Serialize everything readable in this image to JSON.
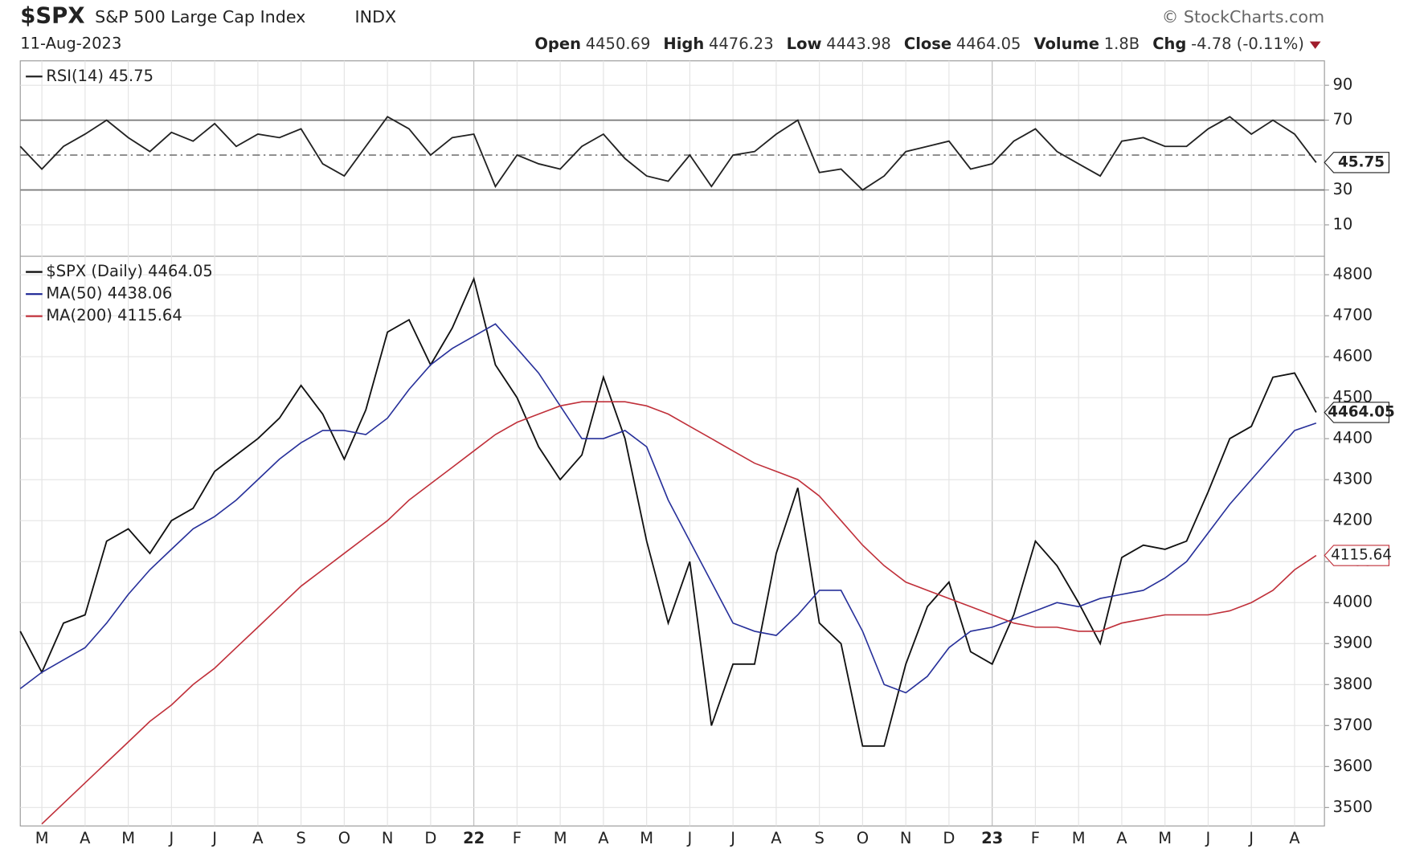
{
  "header": {
    "symbol": "$SPX",
    "name": "S&P 500 Large Cap Index",
    "exchange": "INDX",
    "source": "© StockCharts.com",
    "date": "11-Aug-2023",
    "stats": [
      {
        "label": "Open",
        "value": "4450.69"
      },
      {
        "label": "High",
        "value": "4476.23"
      },
      {
        "label": "Low",
        "value": "4443.98"
      },
      {
        "label": "Close",
        "value": "4464.05"
      },
      {
        "label": "Volume",
        "value": "1.8B"
      },
      {
        "label": "Chg",
        "value": "-4.78 (-0.11%)"
      }
    ]
  },
  "chart_data": [
    {
      "type": "line",
      "ylim": [
        -8,
        104
      ],
      "yticks": [
        10,
        30,
        70,
        90
      ],
      "ref_lines": [
        30,
        50,
        70
      ],
      "grid": true,
      "series": [
        {
          "name": "RSI(14) 45.75",
          "color": "#222222",
          "end_label": "45.75",
          "values": [
            55,
            42,
            55,
            62,
            70,
            60,
            52,
            63,
            58,
            68,
            55,
            62,
            60,
            65,
            45,
            38,
            55,
            72,
            65,
            50,
            60,
            62,
            32,
            50,
            45,
            42,
            55,
            62,
            48,
            38,
            35,
            50,
            32,
            50,
            52,
            62,
            70,
            40,
            42,
            30,
            38,
            52,
            55,
            58,
            42,
            45,
            58,
            65,
            52,
            45,
            38,
            58,
            60,
            55,
            55,
            65,
            72,
            62,
            70,
            62,
            45.75
          ]
        }
      ]
    },
    {
      "type": "line",
      "ylim": [
        3455,
        4845
      ],
      "yticks": [
        3500,
        3600,
        3700,
        3800,
        3900,
        4000,
        4100,
        4200,
        4300,
        4400,
        4500,
        4600,
        4700,
        4800
      ],
      "grid": true,
      "x_labels": [
        "M",
        "A",
        "M",
        "J",
        "J",
        "A",
        "S",
        "O",
        "N",
        "D",
        "22",
        "F",
        "M",
        "A",
        "M",
        "J",
        "J",
        "A",
        "S",
        "O",
        "N",
        "D",
        "23",
        "F",
        "M",
        "A",
        "M",
        "J",
        "J",
        "A"
      ],
      "series": [
        {
          "name": "$SPX (Daily) 4464.05",
          "color": "#111111",
          "end_label": "4464.05",
          "values": [
            3930,
            3830,
            3950,
            3970,
            4150,
            4180,
            4120,
            4200,
            4230,
            4320,
            4360,
            4400,
            4450,
            4530,
            4460,
            4350,
            4470,
            4660,
            4690,
            4580,
            4670,
            4790,
            4580,
            4500,
            4380,
            4300,
            4360,
            4550,
            4400,
            4150,
            3950,
            4100,
            3700,
            3850,
            3850,
            4120,
            4280,
            3950,
            3900,
            3650,
            3650,
            3850,
            3990,
            4050,
            3880,
            3850,
            3970,
            4150,
            4090,
            4000,
            3900,
            4110,
            4140,
            4130,
            4150,
            4270,
            4400,
            4430,
            4550,
            4560,
            4464
          ]
        },
        {
          "name": "MA(50) 4438.06",
          "color": "#27309a",
          "values": [
            3790,
            3830,
            3860,
            3890,
            3950,
            4020,
            4080,
            4130,
            4180,
            4210,
            4250,
            4300,
            4350,
            4390,
            4420,
            4420,
            4410,
            4450,
            4520,
            4580,
            4620,
            4650,
            4680,
            4620,
            4560,
            4480,
            4400,
            4400,
            4420,
            4380,
            4250,
            4150,
            4050,
            3950,
            3930,
            3920,
            3970,
            4030,
            4030,
            3930,
            3800,
            3780,
            3820,
            3890,
            3930,
            3940,
            3960,
            3980,
            4000,
            3990,
            4010,
            4020,
            4030,
            4060,
            4100,
            4170,
            4240,
            4300,
            4360,
            4420,
            4438
          ]
        },
        {
          "name": "MA(200) 4115.64",
          "color": "#c0303a",
          "end_label": "4115.64",
          "values": [
            null,
            3460,
            3510,
            3560,
            3610,
            3660,
            3710,
            3750,
            3800,
            3840,
            3890,
            3940,
            3990,
            4040,
            4080,
            4120,
            4160,
            4200,
            4250,
            4290,
            4330,
            4370,
            4410,
            4440,
            4460,
            4480,
            4490,
            4490,
            4490,
            4480,
            4460,
            4430,
            4400,
            4370,
            4340,
            4320,
            4300,
            4260,
            4200,
            4140,
            4090,
            4050,
            4030,
            4010,
            3990,
            3970,
            3950,
            3940,
            3940,
            3930,
            3930,
            3950,
            3960,
            3970,
            3970,
            3970,
            3980,
            4000,
            4030,
            4080,
            4115
          ]
        }
      ]
    }
  ]
}
